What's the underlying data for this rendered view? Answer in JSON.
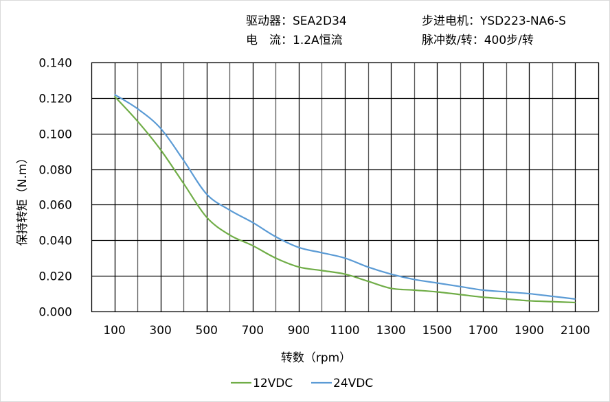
{
  "header": {
    "driver": "驱动器：SEA2D34",
    "current": "电　流：1.2A恒流",
    "motor": "步进电机：YSD223-NA6-S",
    "pulses": "脉冲数/转：400步/转"
  },
  "chart_data": {
    "type": "line",
    "title": "",
    "xlabel": "转数（rpm）",
    "ylabel": "保持转矩（N.m）",
    "xlim": [
      0,
      2200
    ],
    "ylim": [
      0,
      0.14
    ],
    "grid": true,
    "legend": "bottom",
    "x_ticks": [
      "100",
      "300",
      "500",
      "700",
      "900",
      "1100",
      "1300",
      "1500",
      "1700",
      "1900",
      "2100"
    ],
    "y_ticks": [
      "0.000",
      "0.020",
      "0.040",
      "0.060",
      "0.080",
      "0.100",
      "0.120",
      "0.140"
    ],
    "x": [
      100,
      200,
      300,
      400,
      500,
      600,
      700,
      800,
      900,
      1000,
      1100,
      1200,
      1300,
      1400,
      1500,
      1600,
      1700,
      1800,
      1900,
      2000,
      2100
    ],
    "series": [
      {
        "name": "12VDC",
        "color": "#70ad47",
        "values": [
          0.121,
          0.107,
          0.091,
          0.072,
          0.053,
          0.043,
          0.037,
          0.03,
          0.025,
          0.023,
          0.021,
          0.017,
          0.013,
          0.012,
          0.011,
          0.0095,
          0.008,
          0.007,
          0.006,
          0.0055,
          0.005
        ]
      },
      {
        "name": "24VDC",
        "color": "#5b9bd5",
        "values": [
          0.122,
          0.114,
          0.103,
          0.085,
          0.066,
          0.057,
          0.05,
          0.042,
          0.036,
          0.033,
          0.03,
          0.025,
          0.021,
          0.018,
          0.016,
          0.014,
          0.012,
          0.011,
          0.01,
          0.0085,
          0.007
        ]
      }
    ]
  }
}
